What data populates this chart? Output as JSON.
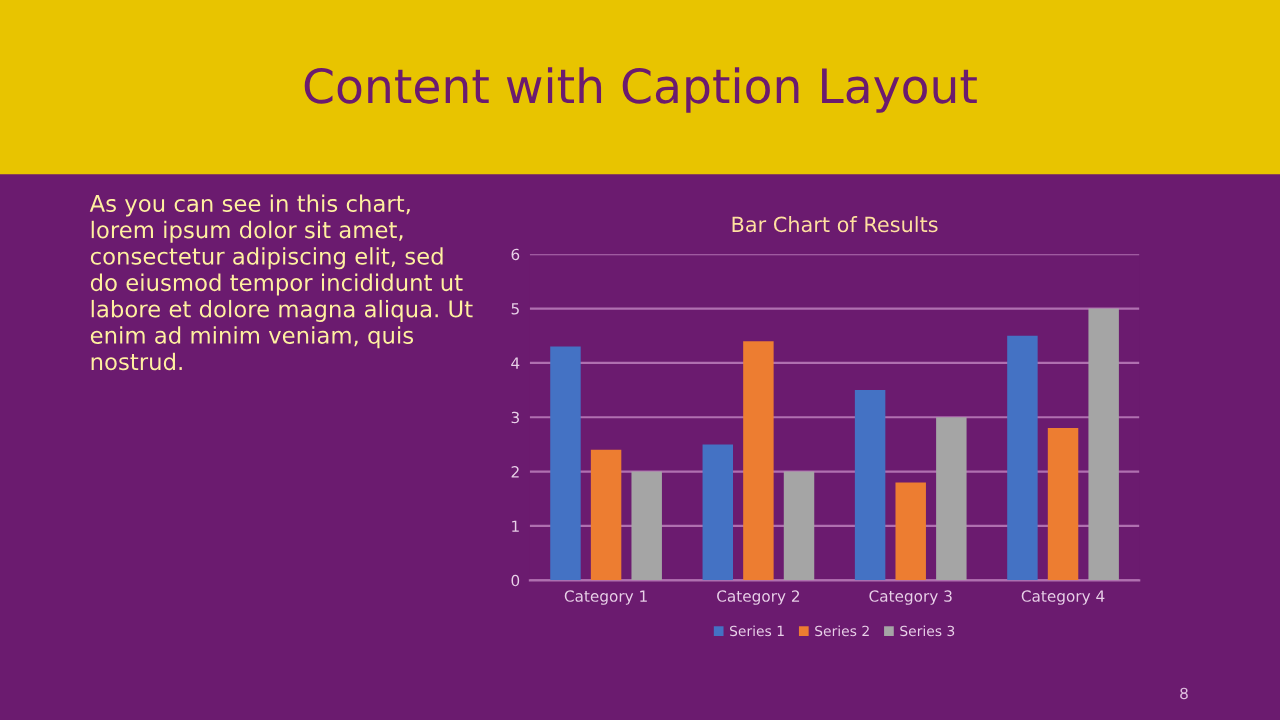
{
  "chart_data": {
    "type": "bar",
    "title": "Bar Chart of Results",
    "subtitle": "Content with Caption Layout",
    "categories": [
      "Category 1",
      "Category 2",
      "Category 3",
      "Category 4"
    ],
    "series": [
      {
        "name": "Series 1",
        "color": "#4472c4",
        "values": [
          4.3,
          2.5,
          3.5,
          4.5
        ]
      },
      {
        "name": "Series 2",
        "color": "#ed7d31",
        "values": [
          2.4,
          4.4,
          1.8,
          2.8
        ]
      },
      {
        "name": "Series 3",
        "color": "#a5a5a5",
        "values": [
          2,
          2,
          3,
          5
        ]
      }
    ],
    "ylim": [
      0,
      6
    ],
    "yticks": [
      0,
      1,
      2,
      3,
      4,
      5,
      6
    ],
    "grid": "y",
    "legend": "bottom",
    "annotations": [
      "As you can see in this chart, lorem ipsum dolor sit amet, consectetur adipiscing elit, sed do eiusmod tempor incididunt ut labore et dolore magna aliqua. Ut enim ad minim veniam, quis nostrud.",
      "8"
    ]
  }
}
